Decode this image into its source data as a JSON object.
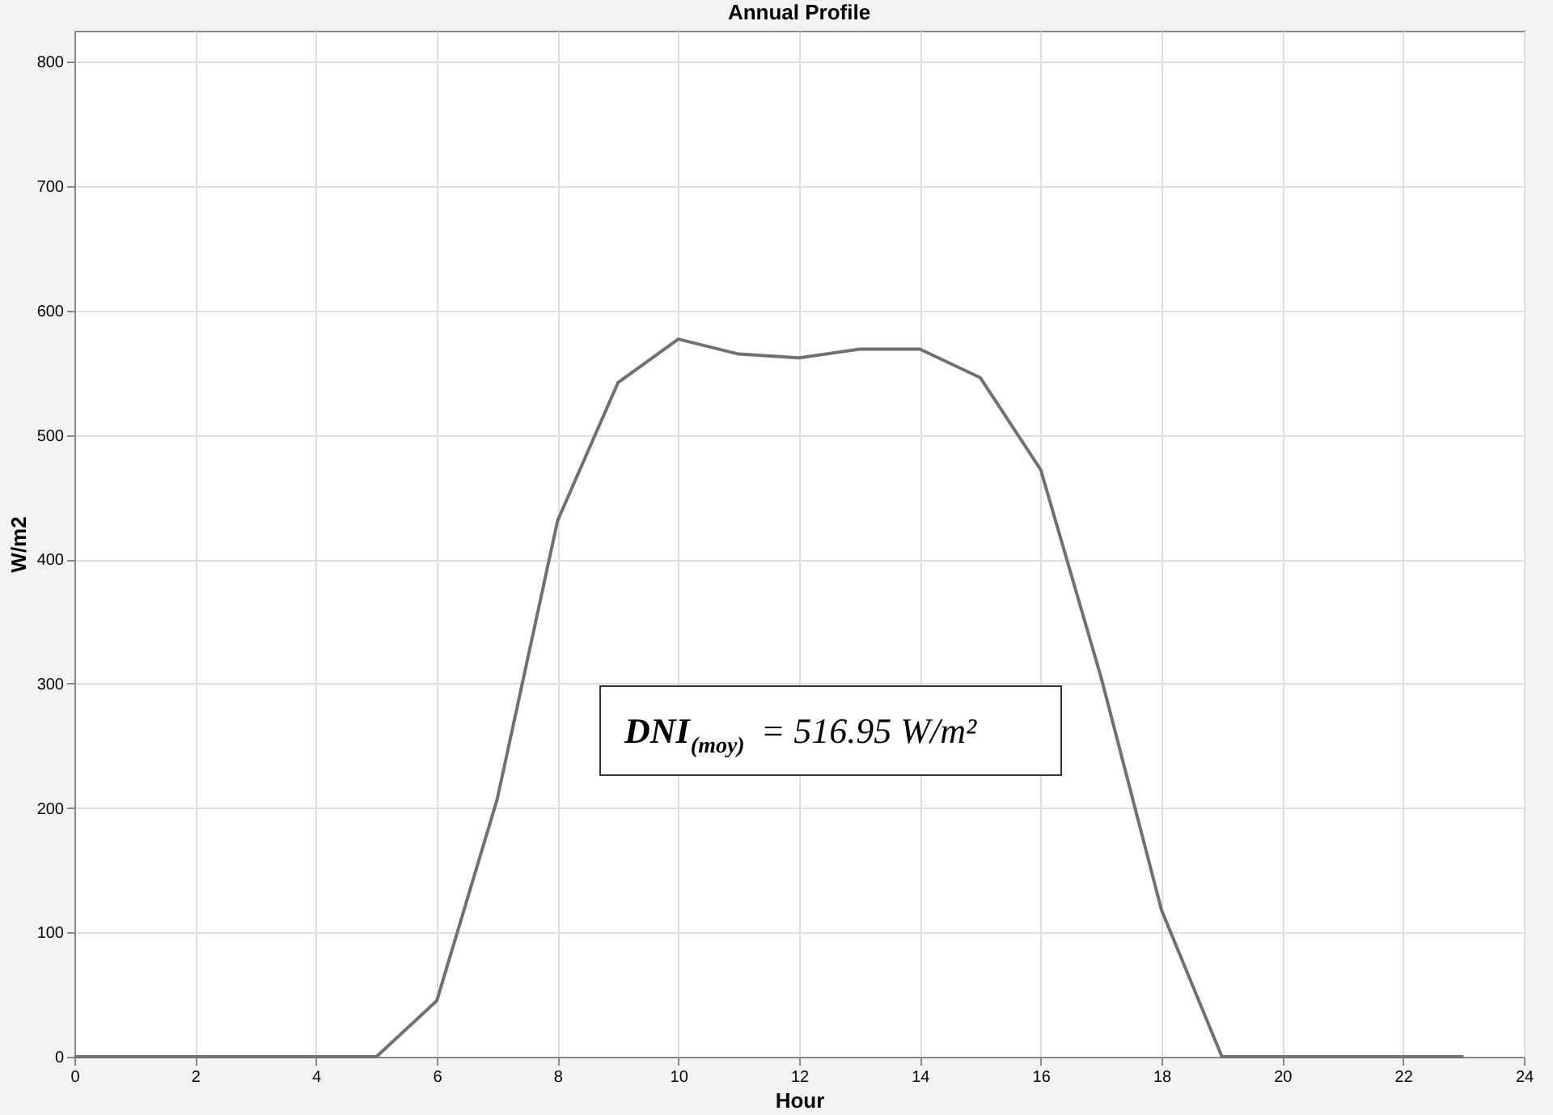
{
  "chart_data": {
    "type": "line",
    "title": "Annual Profile",
    "xlabel": "Hour",
    "ylabel": "W/m2",
    "x": [
      0,
      1,
      2,
      3,
      4,
      5,
      6,
      7,
      8,
      9,
      10,
      11,
      12,
      13,
      14,
      15,
      16,
      17,
      18,
      19,
      20,
      21,
      22,
      23
    ],
    "series": [
      {
        "color": "#707070",
        "values": [
          0,
          0,
          0,
          0,
          0,
          0,
          45,
          207,
          431,
          542,
          577,
          565,
          562,
          569,
          569,
          546,
          472,
          305,
          118,
          0,
          0,
          0,
          0,
          0
        ]
      }
    ],
    "xlim": [
      0,
      24
    ],
    "xticks": [
      0,
      2,
      4,
      6,
      8,
      10,
      12,
      14,
      16,
      18,
      20,
      22,
      24
    ],
    "ylim": [
      0,
      825
    ],
    "yticks": [
      0,
      100,
      200,
      300,
      400,
      500,
      600,
      700,
      800
    ],
    "grid": true,
    "marker": "none",
    "line_style": "solid",
    "annotations": [
      "DNI$_{(moy)}$ = 516.95 W/m²"
    ]
  }
}
